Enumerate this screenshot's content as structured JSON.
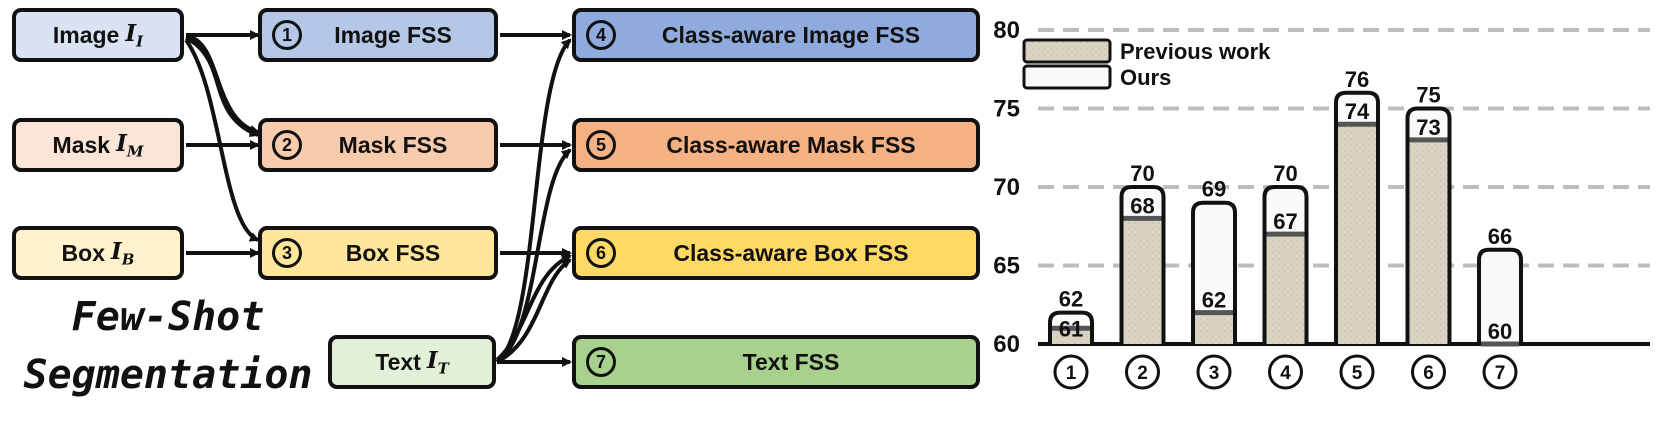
{
  "inputs": {
    "image": {
      "label": "Image",
      "sym": "I",
      "sub": "I"
    },
    "mask": {
      "label": "Mask",
      "sym": "I",
      "sub": "M"
    },
    "box": {
      "label": "Box",
      "sym": "I",
      "sub": "B"
    },
    "text": {
      "label": "Text",
      "sym": "I",
      "sub": "T"
    }
  },
  "tasks": [
    {
      "num": "1",
      "label": "Image FSS"
    },
    {
      "num": "2",
      "label": "Mask FSS"
    },
    {
      "num": "3",
      "label": "Box FSS"
    },
    {
      "num": "4",
      "label": "Class-aware Image FSS"
    },
    {
      "num": "5",
      "label": "Class-aware Mask FSS"
    },
    {
      "num": "6",
      "label": "Class-aware Box FSS"
    },
    {
      "num": "7",
      "label": "Text FSS"
    }
  ],
  "title": {
    "line1": "Few-Shot",
    "line2": "Segmentation"
  },
  "colors": {
    "image": "#8faadc",
    "image_light": "#dae3f3",
    "mask": "#f4b183",
    "mask_light": "#fbe5d6",
    "box": "#ffd966",
    "box_light": "#fff2cc",
    "text": "#a9d18e",
    "text_light": "#e2f0d9",
    "bar_prev": "#d9d3c3",
    "bar_ours": "#fafafa"
  },
  "chart_data": {
    "type": "bar",
    "categories": [
      "1",
      "2",
      "3",
      "4",
      "5",
      "6",
      "7"
    ],
    "series": [
      {
        "name": "Previous work",
        "values": [
          61,
          68,
          62,
          67,
          74,
          73,
          60
        ]
      },
      {
        "name": "Ours",
        "values": [
          62,
          70,
          69,
          70,
          76,
          75,
          66
        ]
      }
    ],
    "ylim": [
      60,
      80
    ],
    "yticks": [
      60,
      65,
      70,
      75,
      80
    ],
    "grid": true,
    "legend_position": "top-left"
  }
}
